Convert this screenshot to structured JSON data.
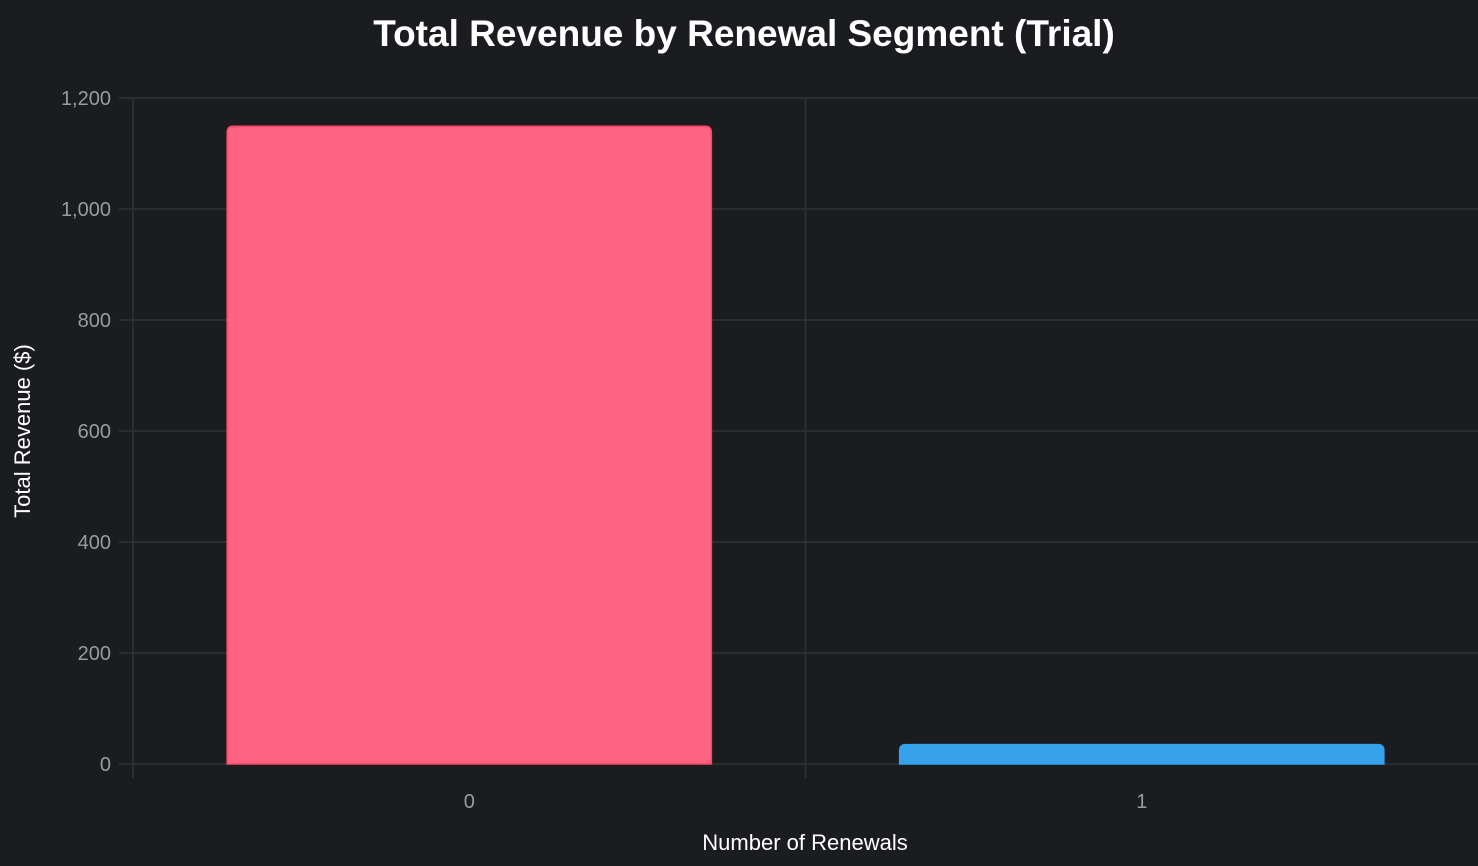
{
  "colors": {
    "background": "#1b1c1f",
    "grid": "#303236",
    "text": "#ffffff",
    "tick_text": "#9a9b9f"
  },
  "chart_data": {
    "type": "bar",
    "title": "Total Revenue by Renewal Segment (Trial)",
    "xlabel": "Number of Renewals",
    "ylabel": "Total Revenue ($)",
    "categories": [
      "0",
      "1"
    ],
    "values": [
      1149,
      35
    ],
    "bar_colors": [
      "#ff6384",
      "#36a2eb"
    ],
    "bar_border_colors": [
      "#ff4560",
      "#36a2eb"
    ],
    "ylim": [
      0,
      1200
    ],
    "yticks": [
      0,
      200,
      400,
      600,
      800,
      1000,
      1200
    ],
    "ytick_labels": [
      "0",
      "200",
      "400",
      "600",
      "800",
      "1,000",
      "1,200"
    ],
    "grid": true,
    "legend": "none"
  }
}
